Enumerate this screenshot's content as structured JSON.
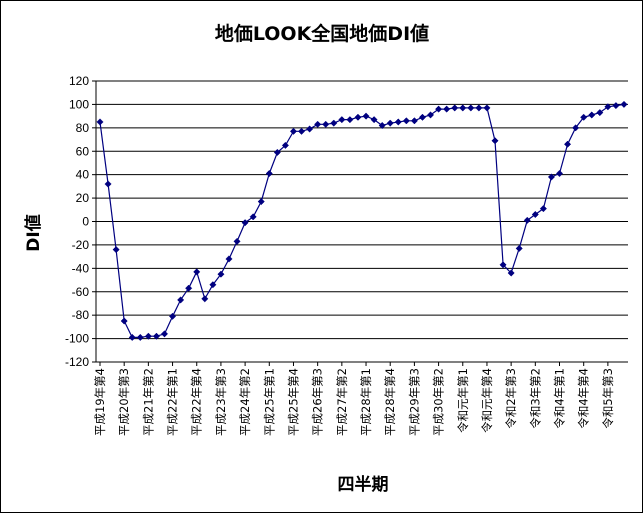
{
  "chart_data": {
    "type": "line",
    "title": "地価LOOK全国地価DI値",
    "xlabel": "四半期",
    "ylabel": "DI値",
    "ylim": [
      -120,
      120
    ],
    "yticks": [
      -120,
      -100,
      -80,
      -60,
      -40,
      -20,
      0,
      20,
      40,
      60,
      80,
      100,
      120
    ],
    "grid": true,
    "series_color": "#000080",
    "category_labels": [
      "平成19年第4",
      "平成20年第3",
      "平成21年第2",
      "平成22年第1",
      "平成22年第4",
      "平成23年第3",
      "平成24年第2",
      "平成25年第1",
      "平成25年第4",
      "平成26年第3",
      "平成27年第2",
      "平成28年第1",
      "平成28年第4",
      "平成29年第3",
      "平成30年第2",
      "令和元年第1",
      "令和元年第4",
      "令和2年第3",
      "令和3年第2",
      "令和4年第1",
      "令和4年第4",
      "令和5年第3"
    ],
    "series": [
      {
        "values": [
          85,
          32,
          -24,
          -85,
          -99,
          -99,
          -98,
          -98,
          -96,
          -81,
          -67,
          -57,
          -43,
          -66,
          -54,
          -45,
          -32,
          -17,
          -1,
          4,
          17,
          41,
          59,
          65,
          77,
          77,
          79,
          83,
          83,
          84,
          87,
          87,
          89,
          90,
          87,
          82,
          84,
          85,
          86,
          86,
          89,
          91,
          96,
          96,
          97,
          97,
          97,
          97,
          97,
          69,
          -37,
          -44,
          -23,
          1,
          6,
          11,
          38,
          41,
          66,
          80,
          89,
          91,
          93,
          98,
          99,
          100
        ]
      }
    ]
  }
}
